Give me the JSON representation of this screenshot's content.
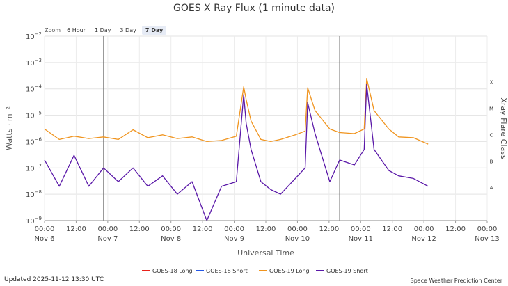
{
  "chart_data": {
    "type": "line",
    "title": "GOES X  Ray Flux (1  minute data)",
    "xlabel": "Universal Time",
    "ylabel": "Watts · m⁻²",
    "y2label": "Xray Flare Class",
    "y_scale": "log",
    "ylim": [
      1e-09,
      0.01
    ],
    "y_ticks": [
      {
        "base": "10",
        "exp": "−2"
      },
      {
        "base": "10",
        "exp": "−3"
      },
      {
        "base": "10",
        "exp": "−4"
      },
      {
        "base": "10",
        "exp": "−5"
      },
      {
        "base": "10",
        "exp": "−6"
      },
      {
        "base": "10",
        "exp": "−7"
      },
      {
        "base": "10",
        "exp": "−8"
      },
      {
        "base": "10",
        "exp": "−9"
      }
    ],
    "flare_classes": [
      "X",
      "M",
      "C",
      "B",
      "A"
    ],
    "xlim": [
      "2025-11-06 00:00",
      "2025-11-13 12:00"
    ],
    "x_tick_labels": [
      {
        "time": "00:00",
        "date": "Nov 6"
      },
      {
        "time": "12:00",
        "date": ""
      },
      {
        "time": "00:00",
        "date": "Nov 7"
      },
      {
        "time": "12:00",
        "date": ""
      },
      {
        "time": "00:00",
        "date": "Nov 8"
      },
      {
        "time": "12:00",
        "date": ""
      },
      {
        "time": "00:00",
        "date": "Nov 9"
      },
      {
        "time": "12:00",
        "date": ""
      },
      {
        "time": "00:00",
        "date": "Nov 10"
      },
      {
        "time": "12:00",
        "date": ""
      },
      {
        "time": "00:00",
        "date": "Nov 11"
      },
      {
        "time": "12:00",
        "date": ""
      },
      {
        "time": "00:00",
        "date": "Nov 12"
      },
      {
        "time": "12:00",
        "date": ""
      },
      {
        "time": "00:00",
        "date": "Nov 13"
      }
    ],
    "vertical_markers": [
      "2025-11-07 00:00",
      "2025-11-11 00:00"
    ],
    "grid": true,
    "legend_position": "bottom",
    "series": [
      {
        "name": "GOES-18 Long",
        "color": "#e8221b",
        "x": [],
        "y": []
      },
      {
        "name": "GOES-18 Short",
        "color": "#2457e6",
        "x": [],
        "y": []
      },
      {
        "name": "GOES-19 Long",
        "color": "#f0941e",
        "x": [
          "2025-11-06 00:00",
          "2025-11-06 06:00",
          "2025-11-06 12:00",
          "2025-11-06 18:00",
          "2025-11-07 00:00",
          "2025-11-07 06:00",
          "2025-11-07 12:00",
          "2025-11-07 18:00",
          "2025-11-08 00:00",
          "2025-11-08 06:00",
          "2025-11-08 12:00",
          "2025-11-08 18:00",
          "2025-11-09 00:00",
          "2025-11-09 06:00",
          "2025-11-09 09:00",
          "2025-11-09 10:00",
          "2025-11-09 12:00",
          "2025-11-09 16:00",
          "2025-11-09 20:00",
          "2025-11-10 00:00",
          "2025-11-10 06:00",
          "2025-11-10 10:00",
          "2025-11-10 11:00",
          "2025-11-10 14:00",
          "2025-11-10 20:00",
          "2025-11-11 00:00",
          "2025-11-11 06:00",
          "2025-11-11 10:00",
          "2025-11-11 11:00",
          "2025-11-11 14:00",
          "2025-11-11 20:00",
          "2025-11-12 00:00",
          "2025-11-12 06:00",
          "2025-11-12 12:00"
        ],
        "y": [
          3e-06,
          1.2e-06,
          1.6e-06,
          1.3e-06,
          1.5e-06,
          1.2e-06,
          2.8e-06,
          1.4e-06,
          1.8e-06,
          1.3e-06,
          1.5e-06,
          1e-06,
          1.1e-06,
          1.6e-06,
          0.00012,
          4e-05,
          6e-06,
          1.2e-06,
          1e-06,
          1.2e-06,
          1.8e-06,
          2.5e-06,
          0.00011,
          1.5e-05,
          3e-06,
          2.2e-06,
          2e-06,
          3e-06,
          0.00025,
          1.5e-05,
          3e-06,
          1.5e-06,
          1.4e-06,
          8e-07
        ]
      },
      {
        "name": "GOES-19 Short",
        "color": "#5a18a8",
        "x": [
          "2025-11-06 00:00",
          "2025-11-06 06:00",
          "2025-11-06 12:00",
          "2025-11-06 18:00",
          "2025-11-07 00:00",
          "2025-11-07 06:00",
          "2025-11-07 12:00",
          "2025-11-07 18:00",
          "2025-11-08 00:00",
          "2025-11-08 06:00",
          "2025-11-08 12:00",
          "2025-11-08 18:00",
          "2025-11-09 00:00",
          "2025-11-09 06:00",
          "2025-11-09 09:00",
          "2025-11-09 10:00",
          "2025-11-09 12:00",
          "2025-11-09 16:00",
          "2025-11-09 20:00",
          "2025-11-10 00:00",
          "2025-11-10 06:00",
          "2025-11-10 10:00",
          "2025-11-10 11:00",
          "2025-11-10 14:00",
          "2025-11-10 20:00",
          "2025-11-11 00:00",
          "2025-11-11 06:00",
          "2025-11-11 10:00",
          "2025-11-11 11:00",
          "2025-11-11 14:00",
          "2025-11-11 20:00",
          "2025-11-12 00:00",
          "2025-11-12 06:00",
          "2025-11-12 12:00"
        ],
        "y": [
          2e-07,
          2e-08,
          3e-07,
          2e-08,
          1e-07,
          3e-08,
          1e-07,
          2e-08,
          5e-08,
          1e-08,
          3e-08,
          1e-09,
          2e-08,
          3e-08,
          6e-05,
          5e-06,
          5e-07,
          3e-08,
          1.5e-08,
          1e-08,
          4e-08,
          1e-07,
          3e-05,
          2e-06,
          3e-08,
          2e-07,
          1.3e-07,
          5e-07,
          0.00015,
          5e-07,
          8e-08,
          5e-08,
          4e-08,
          2e-08
        ]
      }
    ]
  },
  "zoom": {
    "label": "Zoom",
    "options": [
      "6 Hour",
      "1 Day",
      "3 Day",
      "7 Day"
    ]
  },
  "updated": "Updated 2025-11-12 13:30 UTC",
  "credit": "Space Weather Prediction Center"
}
